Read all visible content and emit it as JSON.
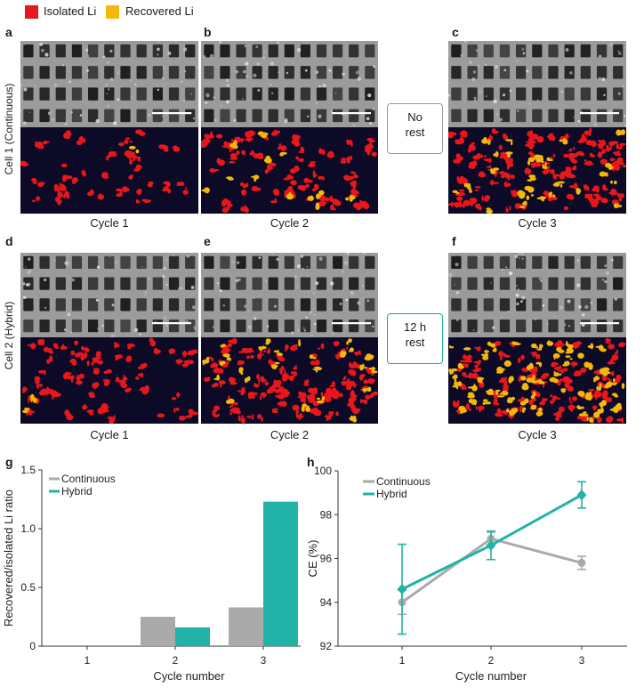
{
  "legend": {
    "items": [
      {
        "label": "Isolated Li",
        "color": "#e8171b"
      },
      {
        "label": "Recovered Li",
        "color": "#f5b80a"
      }
    ]
  },
  "panels": {
    "a": {
      "letter": "a",
      "caption": "Cycle 1"
    },
    "b": {
      "letter": "b",
      "caption": "Cycle 2"
    },
    "c": {
      "letter": "c",
      "caption": "Cycle 3"
    },
    "d": {
      "letter": "d",
      "caption": "Cycle 1"
    },
    "e": {
      "letter": "e",
      "caption": "Cycle 2"
    },
    "f": {
      "letter": "f",
      "caption": "Cycle 3"
    }
  },
  "rows": {
    "cell1": "Cell 1 (Continuous)",
    "cell2": "Cell 2 (Hybrid)"
  },
  "rest": {
    "no_rest_line1": "No",
    "no_rest_line2": "rest",
    "hybrid_rest_line1": "12 h",
    "hybrid_rest_line2": "rest"
  },
  "colors": {
    "continuous": "#aaaaaa",
    "hybrid": "#21b3a8",
    "map_background": "#0c0a26",
    "isolated": "#e8171b",
    "recovered": "#f5b80a"
  },
  "chart_data": [
    {
      "panel": "g",
      "type": "bar",
      "categories": [
        "1",
        "2",
        "3"
      ],
      "series": [
        {
          "name": "Continuous",
          "values": [
            0,
            0.25,
            0.33
          ]
        },
        {
          "name": "Hybrid",
          "values": [
            0,
            0.16,
            1.23
          ]
        }
      ],
      "xlabel": "Cycle number",
      "ylabel": "Recovered/isolated Li ratio",
      "ylim": [
        0,
        1.5
      ],
      "yticks": [
        "0",
        "0.5",
        "1.0",
        "1.5"
      ],
      "legend_position": "top-left",
      "grid": false
    },
    {
      "panel": "h",
      "type": "line",
      "x": [
        1,
        2,
        3
      ],
      "series": [
        {
          "name": "Continuous",
          "values": [
            94.0,
            96.9,
            95.8
          ],
          "error": [
            0.55,
            0.3,
            0.3
          ]
        },
        {
          "name": "Hybrid",
          "values": [
            94.6,
            96.6,
            98.9
          ],
          "error": [
            2.05,
            0.65,
            0.6
          ]
        }
      ],
      "xlabel": "Cycle number",
      "ylabel": "CE (%)",
      "ylim": [
        92,
        100
      ],
      "yticks": [
        "92",
        "94",
        "96",
        "98",
        "100"
      ],
      "xticks": [
        "1",
        "2",
        "3"
      ],
      "legend_position": "top-left",
      "grid": false
    }
  ]
}
